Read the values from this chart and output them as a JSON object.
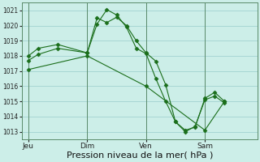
{
  "bg_color": "#cceee8",
  "grid_color": "#99cccc",
  "line_color": "#1a6e1a",
  "marker_color": "#1a6e1a",
  "xlabel": "Pression niveau de la mer( hPa )",
  "xlabel_fontsize": 8,
  "ylim": [
    1012.5,
    1021.5
  ],
  "yticks": [
    1013,
    1014,
    1015,
    1016,
    1017,
    1018,
    1019,
    1020,
    1021
  ],
  "xtick_labels": [
    "Jeu",
    "Dim",
    "Ven",
    "Sam"
  ],
  "xtick_positions": [
    0,
    36,
    72,
    108
  ],
  "vline_positions": [
    0,
    36,
    72,
    108
  ],
  "xlim": [
    -4,
    140
  ],
  "series1_x": [
    0,
    6,
    18,
    36,
    42,
    48,
    54,
    60,
    66,
    72,
    78,
    84,
    90,
    96,
    102,
    108,
    114,
    120
  ],
  "series1_y": [
    1017.7,
    1018.1,
    1018.5,
    1018.2,
    1020.5,
    1020.2,
    1020.55,
    1020.0,
    1019.0,
    1018.2,
    1017.65,
    1016.1,
    1013.65,
    1013.1,
    1013.3,
    1015.2,
    1015.6,
    1015.0
  ],
  "series2_x": [
    0,
    6,
    18,
    36,
    42,
    48,
    54,
    60,
    66,
    72,
    78,
    84,
    90,
    96,
    102,
    108,
    114,
    120
  ],
  "series2_y": [
    1018.0,
    1018.5,
    1018.75,
    1018.2,
    1020.1,
    1021.05,
    1020.7,
    1019.9,
    1018.5,
    1018.15,
    1016.5,
    1015.0,
    1013.65,
    1013.0,
    1013.35,
    1015.1,
    1015.35,
    1014.9
  ],
  "series3_x": [
    0,
    36,
    72,
    108,
    120
  ],
  "series3_y": [
    1017.1,
    1018.0,
    1016.0,
    1013.1,
    1015.0
  ],
  "figsize": [
    3.2,
    2.0
  ],
  "dpi": 100
}
